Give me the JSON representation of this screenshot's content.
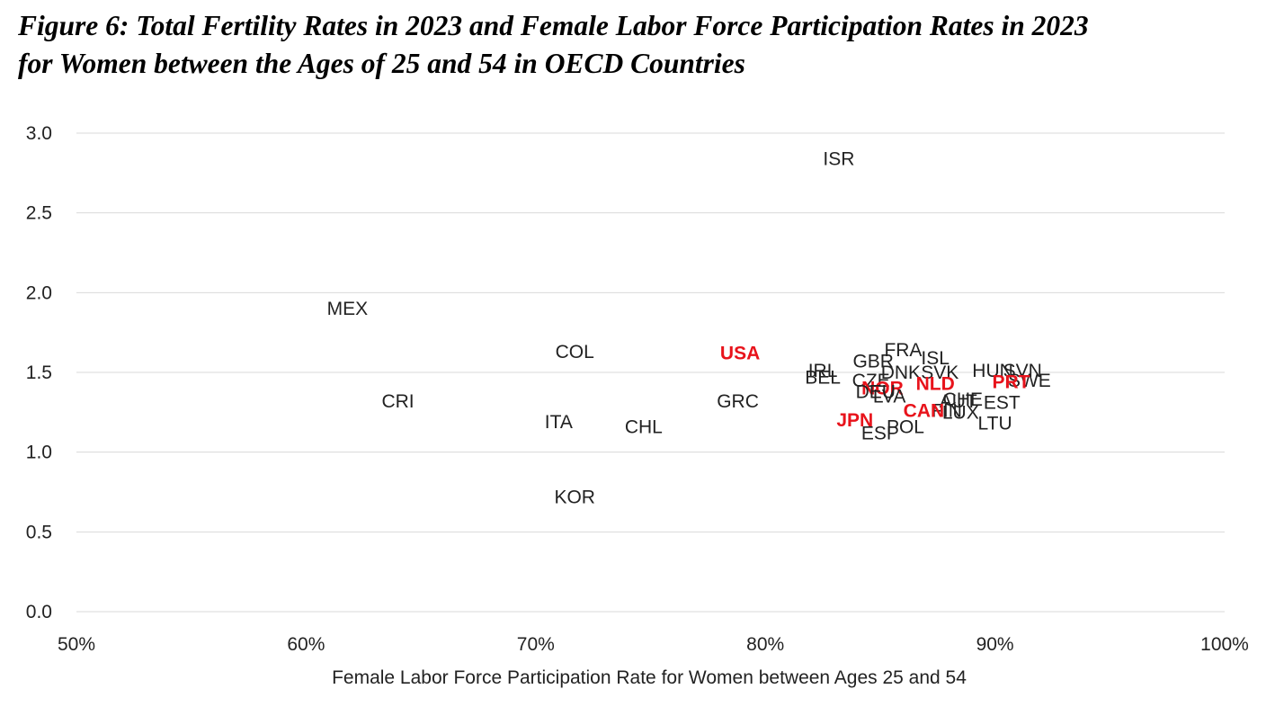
{
  "title_line1": "Figure 6: Total Fertility Rates in 2023 and Female Labor Force Participation Rates in 2023",
  "title_line2": "for Women between the Ages of 25 and 54 in OECD Countries",
  "chart_data": {
    "type": "scatter",
    "xlabel": "Female Labor Force Participation Rate for Women between Ages 25 and 54",
    "ylabel": "",
    "xlim": [
      50,
      100
    ],
    "ylim": [
      0,
      3
    ],
    "x_ticks": [
      "50%",
      "60%",
      "70%",
      "80%",
      "90%",
      "100%"
    ],
    "y_ticks": [
      "0.0",
      "0.5",
      "1.0",
      "1.5",
      "2.0",
      "2.5",
      "3.0"
    ],
    "grid": "horizontal",
    "marker": "text-label",
    "highlight_color": "#e8131b",
    "default_color": "#222222",
    "points": [
      {
        "label": "ISR",
        "x": 83.2,
        "y": 2.84,
        "highlight": false
      },
      {
        "label": "MEX",
        "x": 61.8,
        "y": 1.9,
        "highlight": false
      },
      {
        "label": "COL",
        "x": 71.7,
        "y": 1.63,
        "highlight": false
      },
      {
        "label": "USA",
        "x": 78.9,
        "y": 1.62,
        "highlight": true
      },
      {
        "label": "CRI",
        "x": 64.0,
        "y": 1.32,
        "highlight": false
      },
      {
        "label": "GRC",
        "x": 78.8,
        "y": 1.32,
        "highlight": false
      },
      {
        "label": "ITA",
        "x": 71.0,
        "y": 1.19,
        "highlight": false
      },
      {
        "label": "CHL",
        "x": 74.7,
        "y": 1.16,
        "highlight": false
      },
      {
        "label": "KOR",
        "x": 71.7,
        "y": 0.72,
        "highlight": false
      },
      {
        "label": "FRA",
        "x": 86.0,
        "y": 1.64,
        "highlight": false
      },
      {
        "label": "ISL",
        "x": 87.4,
        "y": 1.59,
        "highlight": false
      },
      {
        "label": "GBR",
        "x": 84.7,
        "y": 1.57,
        "highlight": false
      },
      {
        "label": "IRL",
        "x": 82.5,
        "y": 1.51,
        "highlight": false
      },
      {
        "label": "BEL",
        "x": 82.5,
        "y": 1.47,
        "highlight": false
      },
      {
        "label": "CZE",
        "x": 84.6,
        "y": 1.45,
        "highlight": false
      },
      {
        "label": "DNK",
        "x": 85.9,
        "y": 1.5,
        "highlight": false
      },
      {
        "label": "SVK",
        "x": 87.6,
        "y": 1.5,
        "highlight": false
      },
      {
        "label": "HUN",
        "x": 89.9,
        "y": 1.51,
        "highlight": false
      },
      {
        "label": "SVN",
        "x": 91.2,
        "y": 1.51,
        "highlight": false
      },
      {
        "label": "SWE",
        "x": 91.5,
        "y": 1.45,
        "highlight": false
      },
      {
        "label": "PRT",
        "x": 90.7,
        "y": 1.44,
        "highlight": true
      },
      {
        "label": "NLD",
        "x": 87.4,
        "y": 1.43,
        "highlight": true
      },
      {
        "label": "NOR",
        "x": 85.1,
        "y": 1.4,
        "highlight": true
      },
      {
        "label": "DEU",
        "x": 84.8,
        "y": 1.38,
        "highlight": false
      },
      {
        "label": "LVA",
        "x": 85.4,
        "y": 1.35,
        "highlight": false
      },
      {
        "label": "AUT",
        "x": 88.4,
        "y": 1.32,
        "highlight": false
      },
      {
        "label": "CHE",
        "x": 88.6,
        "y": 1.33,
        "highlight": false
      },
      {
        "label": "EST",
        "x": 90.3,
        "y": 1.31,
        "highlight": false
      },
      {
        "label": "FIN",
        "x": 87.9,
        "y": 1.26,
        "highlight": false
      },
      {
        "label": "LUX",
        "x": 88.5,
        "y": 1.25,
        "highlight": false
      },
      {
        "label": "CAN",
        "x": 86.9,
        "y": 1.26,
        "highlight": true
      },
      {
        "label": "JPN",
        "x": 83.9,
        "y": 1.2,
        "highlight": true
      },
      {
        "label": "LTU",
        "x": 90.0,
        "y": 1.18,
        "highlight": false
      },
      {
        "label": "POL",
        "x": 86.1,
        "y": 1.16,
        "highlight": false
      },
      {
        "label": "ESP",
        "x": 85.0,
        "y": 1.12,
        "highlight": false
      }
    ]
  }
}
